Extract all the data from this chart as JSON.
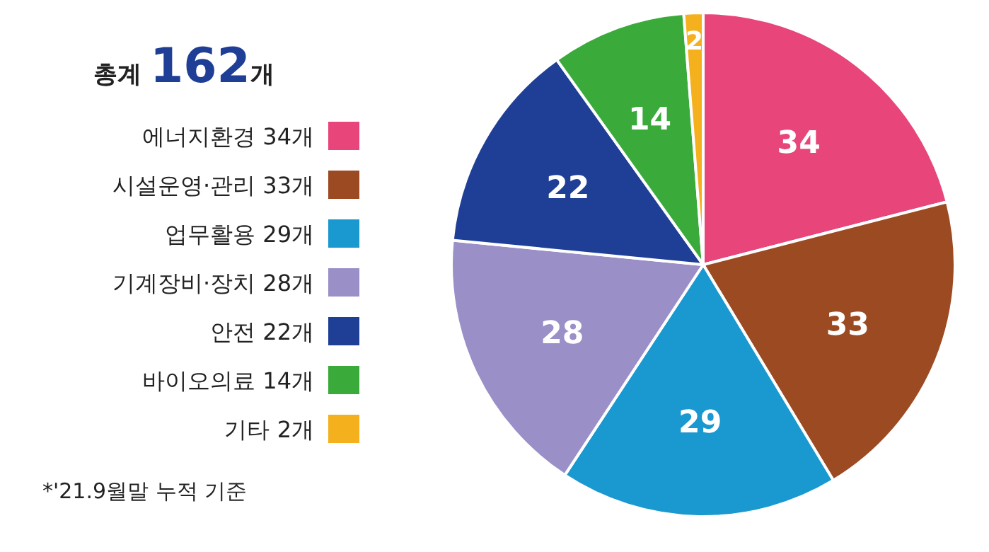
{
  "chart_data": {
    "type": "pie",
    "title": "총계 162개",
    "categories": [
      "에너지환경 34개",
      "시설운영·관리 33개",
      "업무활용 29개",
      "기계장비·장치 28개",
      "안전 22개",
      "바이오의료 14개",
      "기타 2개"
    ],
    "values": [
      34,
      33,
      29,
      28,
      22,
      14,
      2
    ],
    "colors": [
      "#e8457a",
      "#9c4a22",
      "#1a98d0",
      "#9b8fc8",
      "#1f3f97",
      "#3aaa3a",
      "#f5b01e"
    ],
    "data_labels": true,
    "legend": "left",
    "annotations": [
      "*'21.9월말 누적 기준"
    ]
  }
}
